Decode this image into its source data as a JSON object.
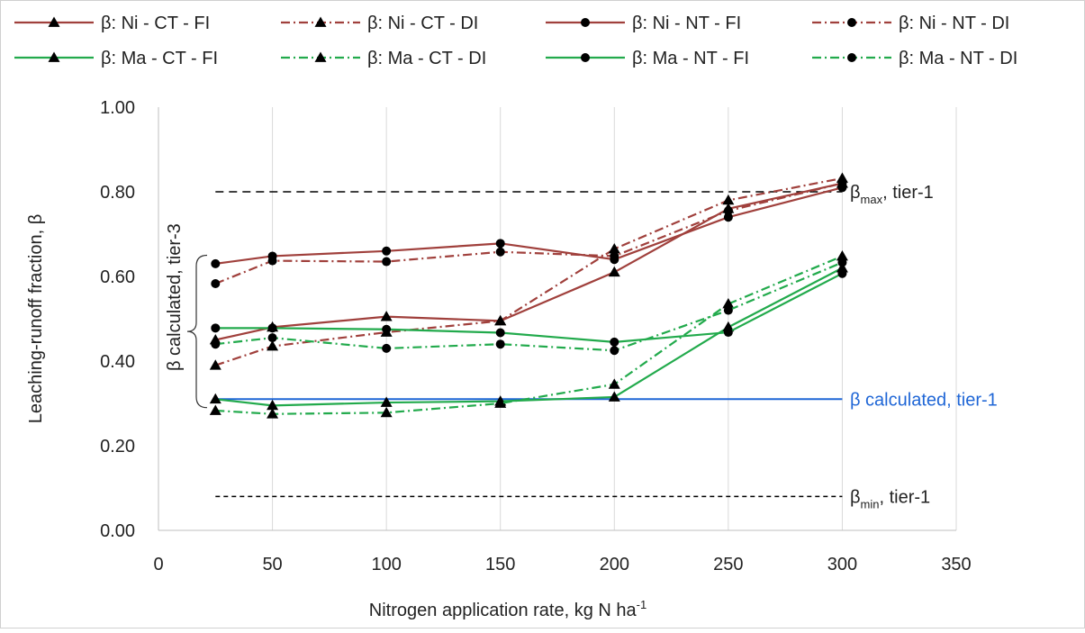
{
  "chart_data": {
    "type": "line",
    "xlabel": "Nitrogen application rate, kg N ha",
    "xlabel_sup": "-1",
    "ylabel": "Leaching-runoff fraction, β",
    "xlim": [
      0,
      350
    ],
    "ylim": [
      0,
      1
    ],
    "xticks": [
      "0",
      "50",
      "100",
      "150",
      "200",
      "250",
      "300",
      "350"
    ],
    "yticks": [
      "0.00",
      "0.20",
      "0.40",
      "0.60",
      "0.80",
      "1.00"
    ],
    "grid": "vertical",
    "legend_position": "top",
    "x": [
      25,
      50,
      100,
      150,
      200,
      250,
      300
    ],
    "colors": {
      "ni": "#a0403c",
      "ma": "#22aa4c",
      "tier1": "#1f66d6",
      "ref": "#000000"
    },
    "series": [
      {
        "name": "β: Ni - CT - FI",
        "group": "ni",
        "dash": "solid",
        "marker": "triangle",
        "values": [
          0.45,
          0.48,
          0.505,
          0.495,
          0.61,
          0.76,
          0.82
        ]
      },
      {
        "name": "β: Ni - CT - DI",
        "group": "ni",
        "dash": "dashdot",
        "marker": "triangle",
        "values": [
          0.39,
          0.435,
          0.468,
          0.495,
          0.665,
          0.78,
          0.832
        ]
      },
      {
        "name": "β: Ni - NT - FI",
        "group": "ni",
        "dash": "solid",
        "marker": "circle",
        "values": [
          0.63,
          0.648,
          0.66,
          0.678,
          0.64,
          0.74,
          0.81
        ]
      },
      {
        "name": "β: Ni - NT - DI",
        "group": "ni",
        "dash": "dashdot",
        "marker": "circle",
        "values": [
          0.583,
          0.637,
          0.635,
          0.658,
          0.648,
          0.755,
          0.82
        ]
      },
      {
        "name": "β: Ma - CT - FI",
        "group": "ma",
        "dash": "solid",
        "marker": "triangle",
        "values": [
          0.31,
          0.295,
          0.302,
          0.305,
          0.315,
          0.48,
          0.62
        ]
      },
      {
        "name": "β: Ma - CT - DI",
        "group": "ma",
        "dash": "dashdot",
        "marker": "triangle",
        "values": [
          0.283,
          0.275,
          0.278,
          0.3,
          0.345,
          0.535,
          0.648
        ]
      },
      {
        "name": "β: Ma - NT - FI",
        "group": "ma",
        "dash": "solid",
        "marker": "circle",
        "values": [
          0.478,
          0.478,
          0.475,
          0.467,
          0.445,
          0.468,
          0.607
        ]
      },
      {
        "name": "β: Ma - NT - DI",
        "group": "ma",
        "dash": "dashdot",
        "marker": "circle",
        "values": [
          0.44,
          0.455,
          0.43,
          0.44,
          0.425,
          0.52,
          0.633
        ]
      }
    ],
    "reference_lines": [
      {
        "key": "max",
        "y": 0.8,
        "x_range": [
          25,
          300
        ],
        "style": "dashed",
        "color": "#000000",
        "label": "β",
        "label_sub": "max",
        "label_rest": ", tier-1"
      },
      {
        "key": "tier1",
        "y": 0.31,
        "x_range": [
          25,
          300
        ],
        "style": "solid",
        "color": "#1f66d6",
        "label": "β calculated, tier-1"
      },
      {
        "key": "min",
        "y": 0.08,
        "x_range": [
          25,
          300
        ],
        "style": "dashed",
        "color": "#000000",
        "label": "β",
        "label_sub": "min",
        "label_rest": ", tier-1"
      }
    ],
    "bracket": {
      "label": "β calculated, tier-3",
      "y_range": [
        0.29,
        0.65
      ]
    }
  }
}
